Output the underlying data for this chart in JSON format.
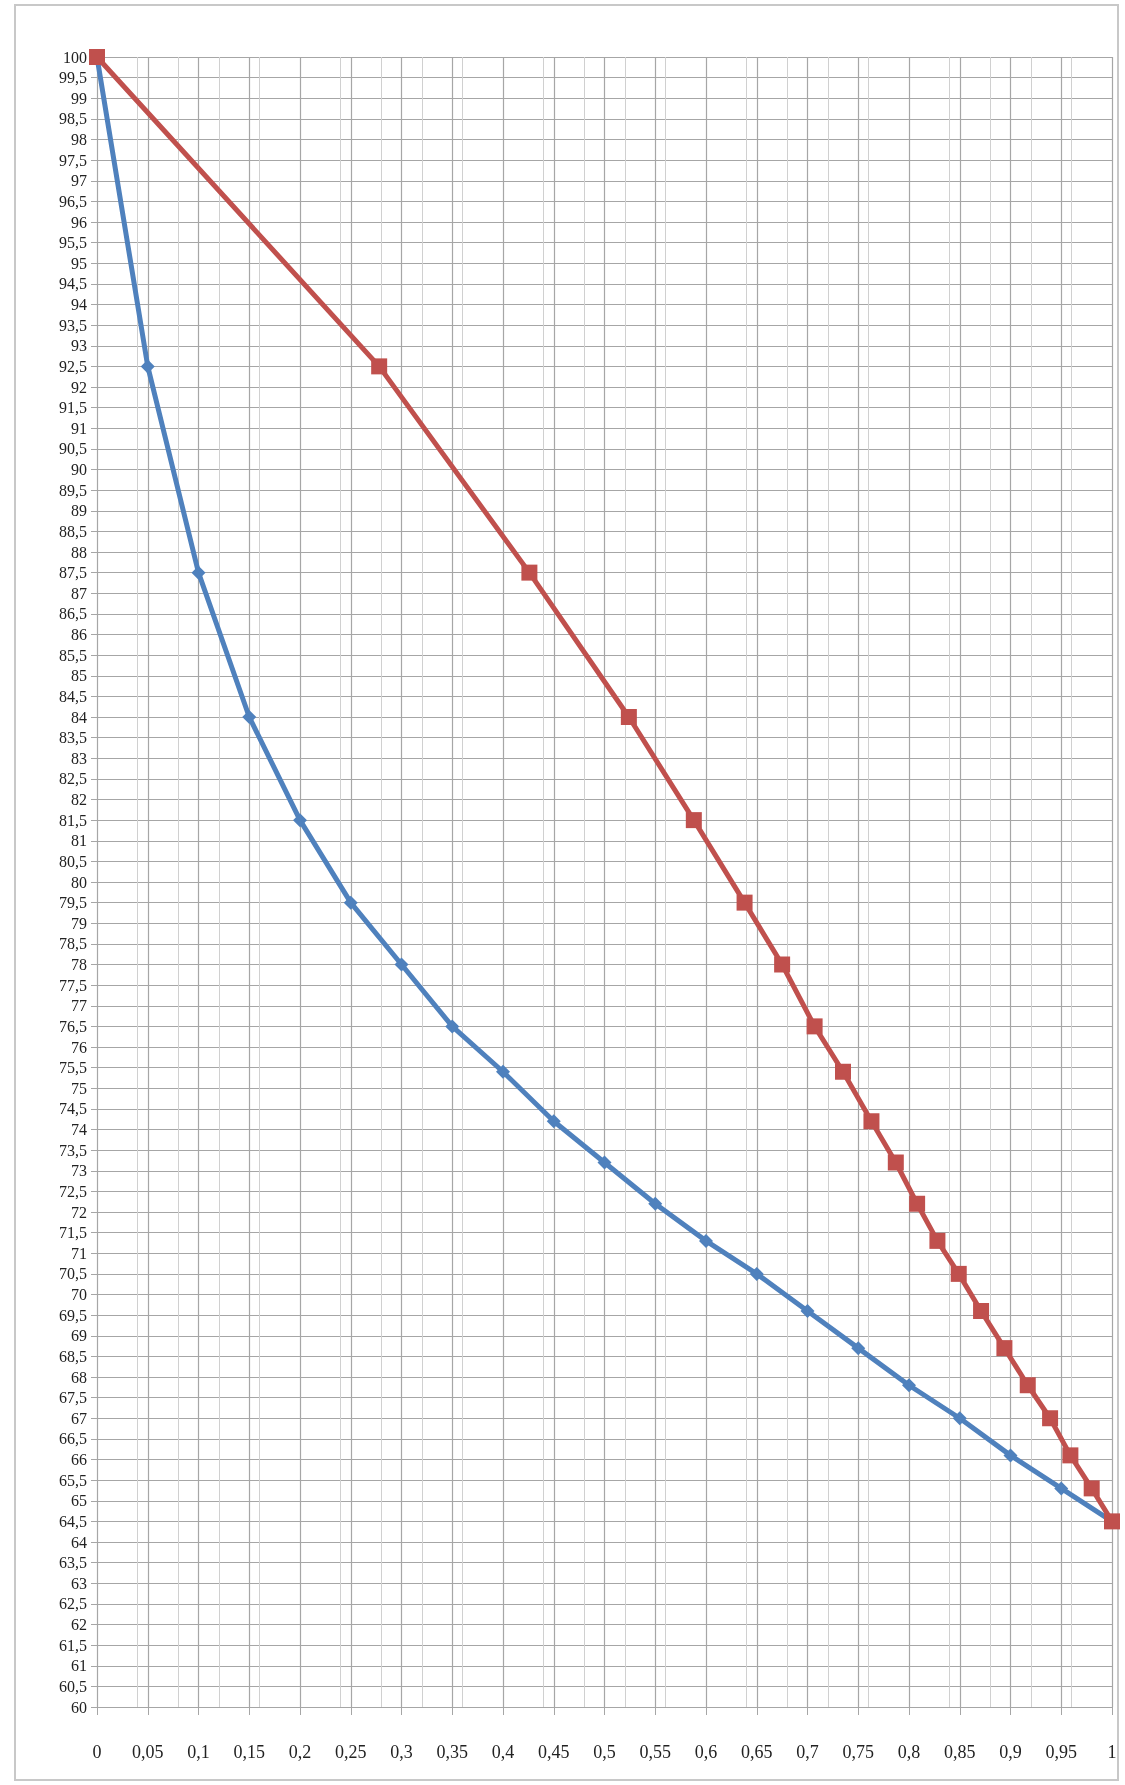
{
  "chart_data": {
    "type": "line",
    "xlim": [
      0,
      1
    ],
    "xticks": [
      0,
      {
        "value": 0.05,
        "label": "0,05"
      },
      {
        "value": 0.1,
        "label": "0,1"
      },
      {
        "value": 0.15,
        "label": "0,15"
      },
      {
        "value": 0.2,
        "label": "0,2"
      },
      {
        "value": 0.25,
        "label": "0,25"
      },
      {
        "value": 0.3,
        "label": "0,3"
      },
      {
        "value": 0.35,
        "label": "0,35"
      },
      {
        "value": 0.4,
        "label": "0,4"
      },
      {
        "value": 0.45,
        "label": "0,45"
      },
      {
        "value": 0.5,
        "label": "0,5"
      },
      {
        "value": 0.55,
        "label": "0,55"
      },
      {
        "value": 0.6,
        "label": "0,6"
      },
      {
        "value": 0.65,
        "label": "0,65"
      },
      {
        "value": 0.7,
        "label": "0,7"
      },
      {
        "value": 0.75,
        "label": "0,75"
      },
      {
        "value": 0.8,
        "label": "0,8"
      },
      {
        "value": 0.85,
        "label": "0,85"
      },
      {
        "value": 0.9,
        "label": "0,9"
      },
      {
        "value": 0.95,
        "label": "0,95"
      },
      1
    ],
    "ylim": [
      60,
      100
    ],
    "yticks": [
      60,
      {
        "value": 60.5,
        "label": "60,5"
      },
      61,
      {
        "value": 61.5,
        "label": "61,5"
      },
      62,
      {
        "value": 62.5,
        "label": "62,5"
      },
      63,
      {
        "value": 63.5,
        "label": "63,5"
      },
      64,
      {
        "value": 64.5,
        "label": "64,5"
      },
      65,
      {
        "value": 65.5,
        "label": "65,5"
      },
      66,
      {
        "value": 66.5,
        "label": "66,5"
      },
      67,
      {
        "value": 67.5,
        "label": "67,5"
      },
      68,
      {
        "value": 68.5,
        "label": "68,5"
      },
      69,
      {
        "value": 69.5,
        "label": "69,5"
      },
      70,
      {
        "value": 70.5,
        "label": "70,5"
      },
      71,
      {
        "value": 71.5,
        "label": "71,5"
      },
      72,
      {
        "value": 72.5,
        "label": "72,5"
      },
      73,
      {
        "value": 73.5,
        "label": "73,5"
      },
      74,
      {
        "value": 74.5,
        "label": "74,5"
      },
      75,
      {
        "value": 75.5,
        "label": "75,5"
      },
      76,
      {
        "value": 76.5,
        "label": "76,5"
      },
      77,
      {
        "value": 77.5,
        "label": "77,5"
      },
      78,
      {
        "value": 78.5,
        "label": "78,5"
      },
      79,
      {
        "value": 79.5,
        "label": "79,5"
      },
      80,
      {
        "value": 80.5,
        "label": "80,5"
      },
      81,
      {
        "value": 81.5,
        "label": "81,5"
      },
      82,
      {
        "value": 82.5,
        "label": "82,5"
      },
      83,
      {
        "value": 83.5,
        "label": "83,5"
      },
      84,
      {
        "value": 84.5,
        "label": "84,5"
      },
      85,
      {
        "value": 85.5,
        "label": "85,5"
      },
      86,
      {
        "value": 86.5,
        "label": "86,5"
      },
      87,
      {
        "value": 87.5,
        "label": "87,5"
      },
      88,
      {
        "value": 88.5,
        "label": "88,5"
      },
      89,
      {
        "value": 89.5,
        "label": "89,5"
      },
      90,
      {
        "value": 90.5,
        "label": "90,5"
      },
      91,
      {
        "value": 91.5,
        "label": "91,5"
      },
      92,
      {
        "value": 92.5,
        "label": "92,5"
      },
      93,
      {
        "value": 93.5,
        "label": "93,5"
      },
      94,
      {
        "value": 94.5,
        "label": "94,5"
      },
      95,
      {
        "value": 95.5,
        "label": "95,5"
      },
      96,
      {
        "value": 96.5,
        "label": "96,5"
      },
      97,
      {
        "value": 97.5,
        "label": "97,5"
      },
      98,
      {
        "value": 98.5,
        "label": "98,5"
      },
      99,
      {
        "value": 99.5,
        "label": "99,5"
      },
      100
    ],
    "grid": true,
    "line_style": "solid",
    "series": [
      {
        "color": "#4f81bd",
        "marker": "diamond",
        "x": [
          0,
          0.05,
          0.1,
          0.15,
          0.2,
          0.25,
          0.3,
          0.35,
          0.4,
          0.45,
          0.5,
          0.55,
          0.6,
          0.65,
          0.7,
          0.75,
          0.8,
          0.85,
          0.9,
          0.95,
          1
        ],
        "values": [
          100,
          92.5,
          87.5,
          84,
          81.5,
          79.5,
          78,
          76.5,
          75.4,
          74.2,
          73.2,
          72.2,
          71.3,
          70.5,
          69.6,
          68.7,
          67.8,
          67,
          66.1,
          65.3,
          64.5
        ]
      },
      {
        "color": "#c0504d",
        "marker": "square",
        "x": [
          0,
          0.278,
          0.426,
          0.524,
          0.588,
          0.638,
          0.675,
          0.707,
          0.735,
          0.763,
          0.787,
          0.808,
          0.828,
          0.849,
          0.871,
          0.894,
          0.917,
          0.939,
          0.959,
          0.98,
          1
        ],
        "values": [
          100,
          92.5,
          87.5,
          84,
          81.5,
          79.5,
          78,
          76.5,
          75.4,
          74.2,
          73.2,
          72.2,
          71.3,
          70.5,
          69.6,
          68.7,
          67.8,
          67,
          66.1,
          65.3,
          64.5
        ]
      }
    ]
  }
}
